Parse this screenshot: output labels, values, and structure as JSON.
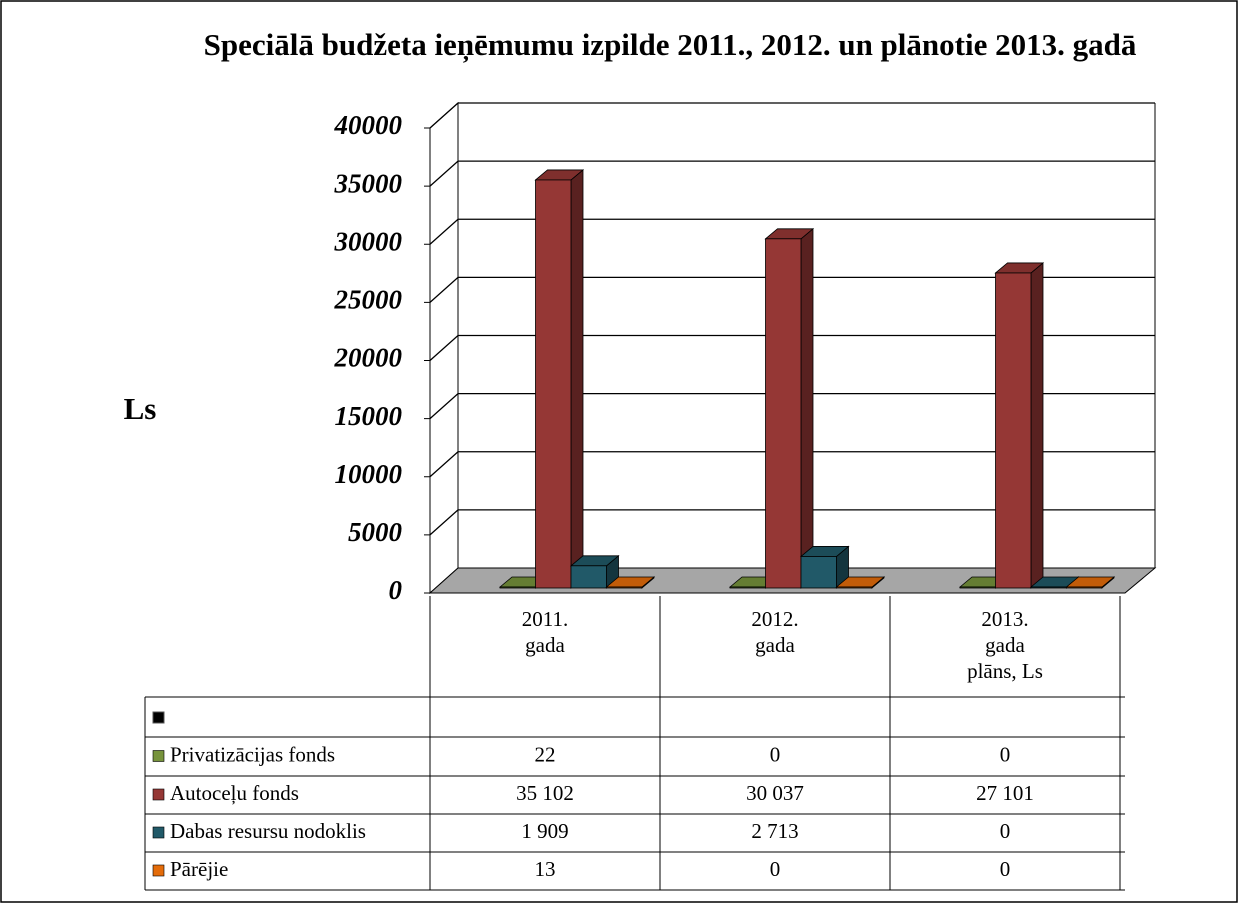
{
  "chart_data": {
    "type": "bar3d",
    "title": "Speciālā budžeta ieņēmumu izpilde 2011., 2012. un plānotie 2013. gadā",
    "ylabel": "Ls",
    "categories": [
      "2011.\ngada",
      "2012.\ngada",
      "2013.\ngada\nplāns, Ls"
    ],
    "series": [
      {
        "name": "Privatizācijas fonds",
        "color": "#77933c",
        "values": [
          22,
          0,
          0
        ],
        "value_labels": [
          "22",
          "0",
          "0"
        ]
      },
      {
        "name": "Autoceļu fonds",
        "color": "#953735",
        "values": [
          35102,
          30037,
          27101
        ],
        "value_labels": [
          "35 102",
          "30 037",
          "27 101"
        ]
      },
      {
        "name": "Dabas resursu nodoklis",
        "color": "#215968",
        "values": [
          1909,
          2713,
          0
        ],
        "value_labels": [
          "1 909",
          "2 713",
          "0"
        ]
      },
      {
        "name": "Pārējie",
        "color": "#e46c0a",
        "values": [
          13,
          0,
          0
        ],
        "value_labels": [
          "13",
          "0",
          "0"
        ]
      }
    ],
    "ylim": [
      0,
      40000
    ],
    "yticks": [
      0,
      5000,
      10000,
      15000,
      20000,
      25000,
      30000,
      35000,
      40000
    ],
    "grid": true
  }
}
